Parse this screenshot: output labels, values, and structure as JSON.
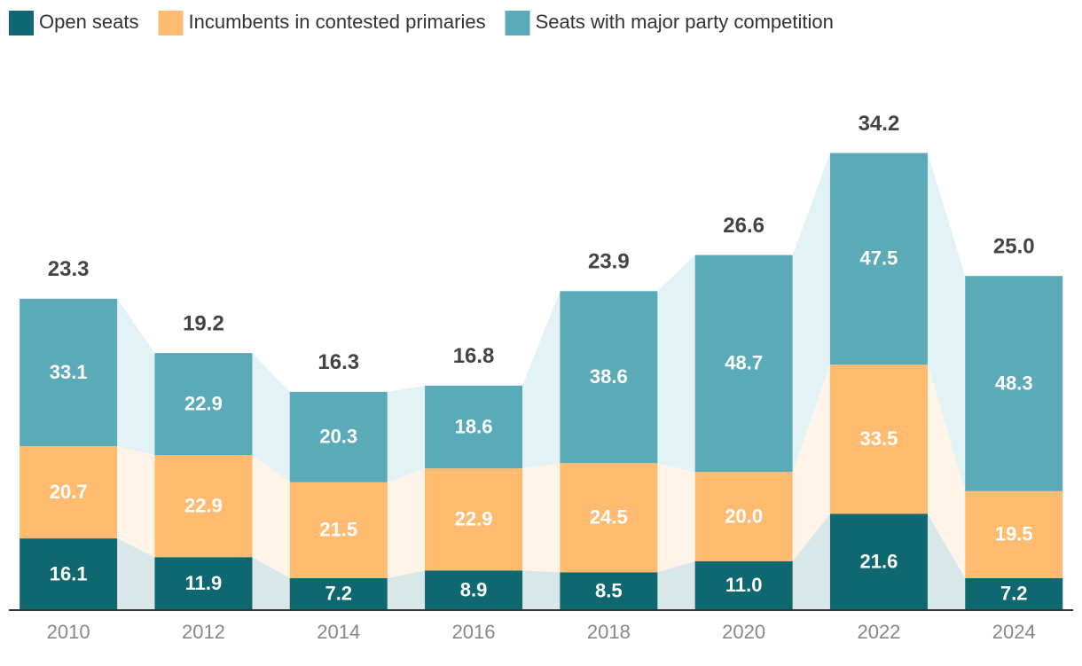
{
  "chart_data": {
    "type": "stacked-bar",
    "categories": [
      "2010",
      "2012",
      "2014",
      "2016",
      "2018",
      "2020",
      "2022",
      "2024"
    ],
    "series": [
      {
        "name": "Open seats",
        "color": "#0f6770",
        "connector_color": "#d9e7e9",
        "values": [
          16.1,
          11.9,
          7.2,
          8.9,
          8.5,
          11.0,
          21.6,
          7.2
        ],
        "value_labels": [
          "16.1",
          "11.9",
          "7.2",
          "8.9",
          "8.5",
          "11.0",
          "21.6",
          "7.2"
        ]
      },
      {
        "name": "Incumbents in contested primaries",
        "color": "#ffbb6f",
        "connector_color": "#fff4e8",
        "values": [
          20.7,
          22.9,
          21.5,
          22.9,
          24.5,
          20.0,
          33.5,
          19.5
        ],
        "value_labels": [
          "20.7",
          "22.9",
          "21.5",
          "22.9",
          "24.5",
          "20.0",
          "33.5",
          "19.5"
        ]
      },
      {
        "name": "Seats with major party competition",
        "color": "#5aabb7",
        "connector_color": "#e3f2f4",
        "values": [
          33.1,
          22.9,
          20.3,
          18.6,
          38.6,
          48.7,
          47.5,
          48.3
        ],
        "value_labels": [
          "33.1",
          "22.9",
          "20.3",
          "18.6",
          "38.6",
          "48.7",
          "47.5",
          "48.3"
        ]
      }
    ],
    "totals": {
      "values": [
        23.3,
        19.2,
        16.3,
        16.8,
        23.9,
        26.6,
        34.2,
        25.0
      ],
      "value_labels": [
        "23.3",
        "19.2",
        "16.3",
        "16.8",
        "23.9",
        "26.6",
        "34.2",
        "25.0"
      ]
    },
    "ylim": [
      0,
      125
    ]
  }
}
